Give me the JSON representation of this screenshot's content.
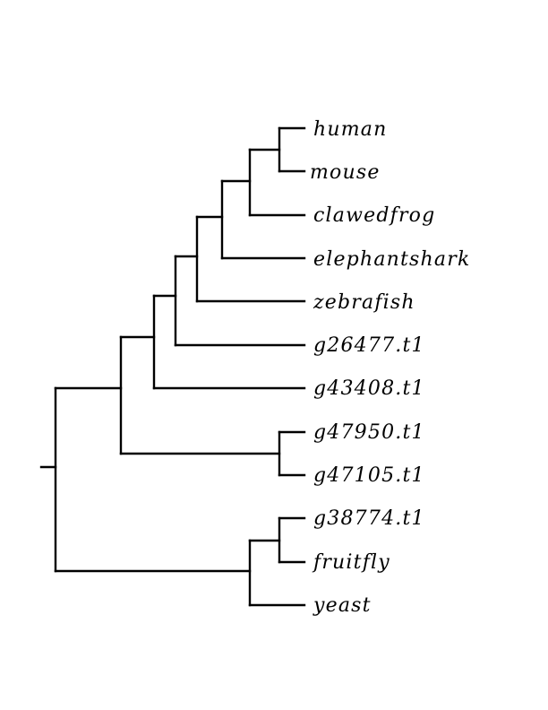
{
  "tree": {
    "leaves": [
      "human",
      "mouse",
      "clawedfrog",
      "elephantshark",
      "zebrafish",
      "g26477.t1",
      "g43408.t1",
      "g47950.t1",
      "g47105.t1",
      "g38774.t1",
      "fruitfly",
      "yeast"
    ],
    "newick": "((((((((human,mouse),clawedfrog),elephantshark),zebrafish),g26477.t1),g43408.t1),(g47950.t1,g47105.t1)),((g38774.t1,fruitfly),yeast));",
    "line_color": "#000000"
  }
}
